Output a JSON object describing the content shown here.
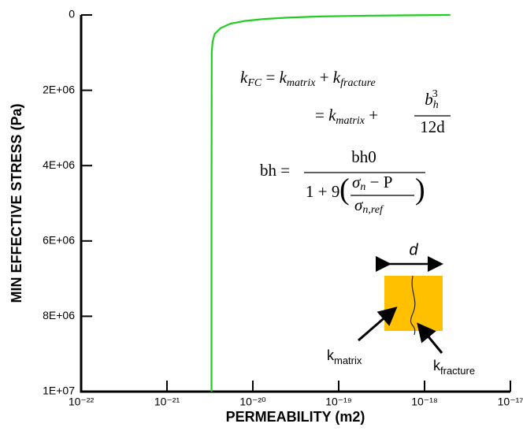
{
  "chart_data": {
    "type": "line",
    "xlabel": "PERMEABILITY (m2)",
    "ylabel": "MIN EFFECTIVE STRESS (Pa)",
    "xscale": "log",
    "yinverted": true,
    "xlim": [
      1e-22,
      1e-17
    ],
    "xticks": [
      {
        "value": 1e-22,
        "label": "10⁻²²"
      },
      {
        "value": 1e-21,
        "label": "10⁻²¹"
      },
      {
        "value": 1e-20,
        "label": "10⁻²⁰"
      },
      {
        "value": 1e-19,
        "label": "10⁻¹⁹"
      },
      {
        "value": 1e-18,
        "label": "10⁻¹⁸"
      },
      {
        "value": 1e-17,
        "label": "10⁻¹⁷"
      }
    ],
    "ylim": [
      0,
      10000000
    ],
    "yticks": [
      0,
      {
        "value": 2000000,
        "label": "2E+06"
      },
      {
        "value": 4000000,
        "label": "4E+06"
      },
      {
        "value": 6000000,
        "label": "6E+06"
      },
      {
        "value": 8000000,
        "label": "8E+06"
      },
      {
        "value": 10000000,
        "label": "1E+07"
      }
    ],
    "series": [
      {
        "color": "#22cc22",
        "x": [
          3.3e-21,
          3.3e-21,
          3.32e-21,
          3.4e-21,
          3.6e-21,
          4.2e-21,
          5.5e-21,
          8e-21,
          1.3e-20,
          2.5e-20,
          6e-20,
          2e-19,
          7e-19,
          2e-18
        ],
        "values": [
          10000000,
          5000000,
          1000000,
          700000,
          500000,
          350000,
          230000,
          160000,
          110000,
          70000,
          40000,
          20000,
          8000,
          0
        ]
      }
    ],
    "annotations": {
      "equation_1": [
        "k",
        "FC",
        " = ",
        "k",
        "matrix",
        " + ",
        "k",
        "fracture"
      ],
      "equation_2": [
        "= ",
        "k",
        "matrix",
        " +"
      ],
      "fraction_2_numerator": [
        "b",
        "h",
        "3"
      ],
      "fraction_2_denominator": "12d",
      "equation_3_lhs": "bh =",
      "fraction_3_numerator": "bh0",
      "fraction_3_denominator": [
        "1 + 9",
        "(",
        "σ",
        "n",
        " − P",
        "σ",
        "n,ref",
        ")"
      ],
      "diagram_width": "d",
      "label_matrix": [
        "k",
        "matrix"
      ],
      "label_fracture": [
        "k",
        "fracture"
      ]
    }
  }
}
